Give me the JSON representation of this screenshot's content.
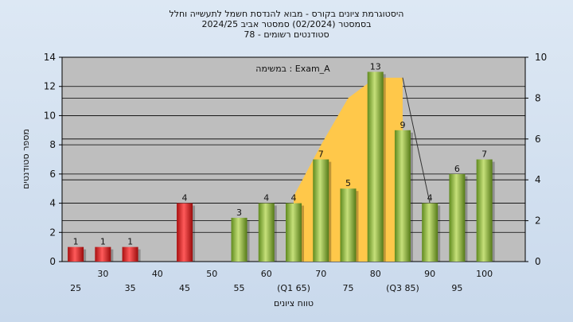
{
  "chart_data": {
    "type": "bar",
    "title_lines": [
      "היסטוגרמת ציונים בקורס - מבוא להנדסת חשמל לתעשייה וחלל",
      "בסמסטר  (02/2024)  סמסטר אביב 2024/25",
      "סטודנטים רשומים - 78"
    ],
    "annotation": "במשימה : Exam_A",
    "xlabel": "טווח ציונים",
    "ylabel": "מספר סטודנטים",
    "ylim": [
      0,
      14
    ],
    "y_ticks": [
      0,
      2,
      4,
      6,
      8,
      10,
      12,
      14
    ],
    "y2lim": [
      0,
      10
    ],
    "y2_ticks": [
      0,
      2,
      4,
      6,
      8,
      10
    ],
    "x_ticks_row1": [
      "30",
      "40",
      "50",
      "60",
      "70",
      "80",
      "90",
      "100"
    ],
    "x_ticks_row2": [
      "25",
      "35",
      "45",
      "55",
      "(Q1 65)",
      "75",
      "(Q3 85)",
      "95"
    ],
    "categories": [
      25,
      30,
      35,
      40,
      45,
      50,
      55,
      60,
      65,
      70,
      75,
      80,
      85,
      90,
      95,
      100
    ],
    "values": [
      1,
      1,
      1,
      0,
      4,
      0,
      3,
      4,
      4,
      7,
      5,
      13,
      9,
      4,
      6,
      7
    ],
    "value_labels": [
      "1",
      "1",
      "1",
      "",
      "4",
      "",
      "3",
      "4",
      "4",
      "7",
      "5",
      "13",
      "9",
      "4",
      "6",
      "7"
    ],
    "bar_status": [
      "fail",
      "fail",
      "fail",
      "fail",
      "fail",
      "fail",
      "pass",
      "pass",
      "pass",
      "pass",
      "pass",
      "pass",
      "pass",
      "pass",
      "pass",
      "pass"
    ],
    "quartile_area": {
      "x": [
        65,
        70,
        75,
        80,
        85
      ],
      "y2": [
        3.2,
        5.7,
        8.0,
        9.0,
        9.0
      ]
    },
    "colors": {
      "fail": "#e03030",
      "pass": "#9dc24a",
      "area": "#ffc84a",
      "plot_bg": "#bebebe",
      "grid": "#000000"
    },
    "grid": true
  }
}
